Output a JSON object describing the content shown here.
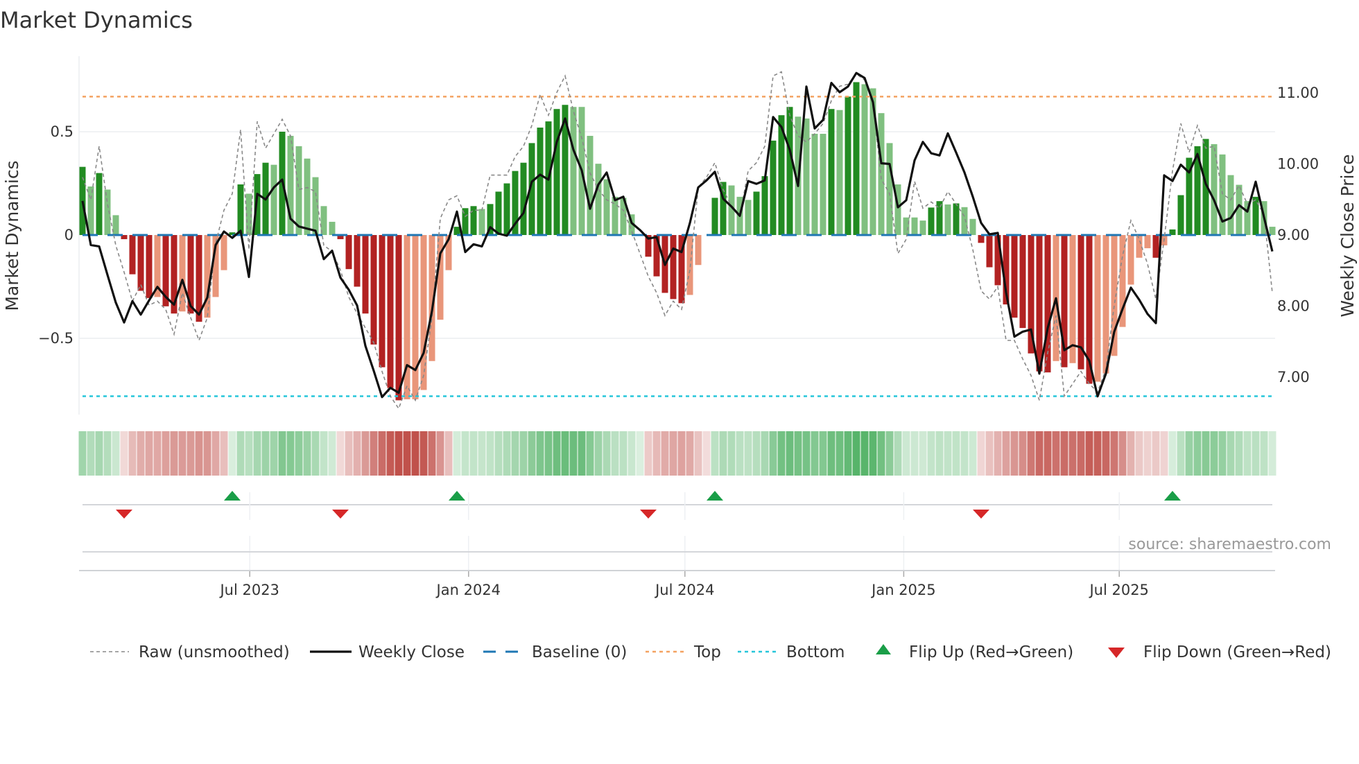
{
  "title": "Market Dynamics",
  "source": "source: sharemaestro.com",
  "colors": {
    "up_strong": "#228b22",
    "up_weak": "#80c080",
    "down_strong": "#b22222",
    "down_weak": "#e9967a",
    "raw": "#888888",
    "close": "#111111",
    "baseline": "#1f77b4",
    "top": "#f4a261",
    "bottom": "#26c6da",
    "flip_up": "#1a9e48",
    "flip_down": "#d62728",
    "strip_green": "#4caf60",
    "strip_red": "#c0504a"
  },
  "chart_data": {
    "type": "bar",
    "title": "Market Dynamics",
    "xlabel": "",
    "ylabel": "Market Dynamics",
    "y2label": "Weekly Close Price",
    "frequency": "weekly",
    "start_date": "2023-02-10",
    "ylim": [
      -0.87,
      0.87
    ],
    "y2lim": [
      6.5,
      11.5
    ],
    "yticks": [
      {
        "v": 0.5,
        "label": "0.5"
      },
      {
        "v": 0,
        "label": "0"
      },
      {
        "v": -0.5,
        "label": "−0.5"
      }
    ],
    "y2ticks": [
      {
        "v": 11,
        "label": "11.00"
      },
      {
        "v": 10,
        "label": "10.00"
      },
      {
        "v": 9,
        "label": "9.00"
      },
      {
        "v": 8,
        "label": "8.00"
      },
      {
        "v": 7,
        "label": "7.00"
      }
    ],
    "xticks": [
      {
        "week": 21.1,
        "label": "Jul 2023"
      },
      {
        "week": 47.4,
        "label": "Jan 2024"
      },
      {
        "week": 73.4,
        "label": "Jul 2024"
      },
      {
        "week": 99.7,
        "label": "Jan 2025"
      },
      {
        "week": 125.6,
        "label": "Jul 2025"
      }
    ],
    "top_level": 0.67,
    "bottom_level": -0.78,
    "baseline": 0,
    "grid": true,
    "legend_position": "bottom",
    "series": [
      {
        "name": "Market Dynamics",
        "kind": "bar",
        "values": [
          0.33,
          0.235,
          0.3,
          0.22,
          0.096,
          -0.02,
          -0.19,
          -0.27,
          -0.305,
          -0.3,
          -0.345,
          -0.38,
          -0.37,
          -0.38,
          -0.42,
          -0.4,
          -0.3,
          -0.17,
          0.013,
          0.245,
          0.2,
          0.295,
          0.35,
          0.34,
          0.5,
          0.48,
          0.43,
          0.37,
          0.28,
          0.14,
          0.064,
          -0.02,
          -0.165,
          -0.25,
          -0.38,
          -0.53,
          -0.64,
          -0.74,
          -0.8,
          -0.795,
          -0.795,
          -0.75,
          -0.61,
          -0.41,
          -0.17,
          0.04,
          0.13,
          0.14,
          0.126,
          0.15,
          0.21,
          0.25,
          0.31,
          0.35,
          0.445,
          0.52,
          0.55,
          0.61,
          0.63,
          0.62,
          0.62,
          0.48,
          0.345,
          0.27,
          0.185,
          0.18,
          0.1,
          0.0,
          -0.105,
          -0.2,
          -0.28,
          -0.31,
          -0.33,
          -0.29,
          -0.145,
          0.0,
          0.18,
          0.257,
          0.24,
          0.185,
          0.17,
          0.21,
          0.285,
          0.457,
          0.58,
          0.62,
          0.573,
          0.564,
          0.49,
          0.49,
          0.61,
          0.605,
          0.67,
          0.74,
          0.73,
          0.71,
          0.59,
          0.445,
          0.245,
          0.085,
          0.085,
          0.07,
          0.133,
          0.164,
          0.148,
          0.153,
          0.135,
          0.078,
          -0.038,
          -0.156,
          -0.243,
          -0.336,
          -0.4,
          -0.45,
          -0.573,
          -0.66,
          -0.665,
          -0.61,
          -0.64,
          -0.62,
          -0.65,
          -0.72,
          -0.71,
          -0.67,
          -0.585,
          -0.445,
          -0.24,
          -0.11,
          -0.064,
          -0.11,
          -0.05,
          0.027,
          0.193,
          0.374,
          0.43,
          0.465,
          0.44,
          0.39,
          0.29,
          0.243,
          0.164,
          0.185,
          0.164,
          0.04
        ]
      },
      {
        "name": "Raw (unsmoothed)",
        "kind": "line",
        "values": [
          0.28,
          0.17,
          0.43,
          0.15,
          -0.05,
          -0.18,
          -0.32,
          -0.24,
          -0.34,
          -0.32,
          -0.36,
          -0.48,
          -0.28,
          -0.4,
          -0.51,
          -0.4,
          -0.04,
          0.12,
          0.2,
          0.51,
          -0.07,
          0.55,
          0.42,
          0.49,
          0.56,
          0.48,
          0.22,
          0.23,
          0.21,
          -0.05,
          -0.08,
          -0.17,
          -0.3,
          -0.38,
          -0.45,
          -0.52,
          -0.66,
          -0.78,
          -0.84,
          -0.73,
          -0.8,
          -0.68,
          -0.4,
          0.08,
          0.17,
          0.19,
          0.09,
          0.12,
          0.12,
          0.29,
          0.29,
          0.29,
          0.38,
          0.43,
          0.53,
          0.68,
          0.58,
          0.69,
          0.77,
          0.6,
          0.47,
          0.3,
          0.22,
          0.17,
          0.15,
          0.12,
          0.02,
          -0.09,
          -0.2,
          -0.28,
          -0.39,
          -0.32,
          -0.36,
          -0.17,
          0.23,
          0.28,
          0.35,
          0.22,
          0.14,
          0.09,
          0.31,
          0.35,
          0.43,
          0.77,
          0.79,
          0.58,
          0.48,
          0.45,
          0.49,
          0.54,
          0.65,
          0.72,
          0.73,
          0.78,
          0.75,
          0.65,
          0.27,
          0.2,
          -0.09,
          -0.02,
          0.26,
          0.13,
          0.16,
          0.13,
          0.21,
          0.15,
          0.09,
          -0.07,
          -0.27,
          -0.31,
          -0.25,
          -0.51,
          -0.51,
          -0.6,
          -0.68,
          -0.8,
          -0.57,
          -0.39,
          -0.78,
          -0.72,
          -0.66,
          -0.72,
          -0.76,
          -0.65,
          -0.34,
          -0.1,
          0.07,
          -0.02,
          -0.14,
          -0.31,
          -0.02,
          0.31,
          0.54,
          0.4,
          0.53,
          0.42,
          0.43,
          0.2,
          0.17,
          0.24,
          0.15,
          0.17,
          0.1,
          -0.28
        ]
      },
      {
        "name": "Weekly Close",
        "kind": "line",
        "axis": "right",
        "values": [
          9.48,
          8.86,
          8.84,
          8.44,
          8.05,
          7.77,
          8.07,
          7.88,
          8.08,
          8.27,
          8.13,
          8.02,
          8.37,
          8.0,
          7.88,
          8.12,
          8.86,
          9.05,
          8.96,
          9.06,
          8.41,
          9.58,
          9.5,
          9.67,
          9.78,
          9.23,
          9.12,
          9.09,
          9.06,
          8.66,
          8.78,
          8.4,
          8.23,
          8.01,
          7.44,
          7.09,
          6.72,
          6.85,
          6.78,
          7.17,
          7.1,
          7.34,
          7.93,
          8.74,
          8.94,
          9.33,
          8.76,
          8.87,
          8.84,
          9.11,
          9.02,
          8.99,
          9.16,
          9.31,
          9.75,
          9.85,
          9.78,
          10.31,
          10.64,
          10.2,
          9.91,
          9.37,
          9.71,
          9.88,
          9.49,
          9.54,
          9.17,
          9.07,
          8.95,
          8.97,
          8.58,
          8.81,
          8.76,
          9.17,
          9.67,
          9.77,
          9.89,
          9.51,
          9.4,
          9.27,
          9.76,
          9.72,
          9.77,
          10.66,
          10.52,
          10.2,
          9.69,
          11.09,
          10.5,
          10.62,
          11.14,
          11.01,
          11.09,
          11.28,
          11.21,
          10.87,
          10.01,
          10.0,
          9.39,
          9.49,
          10.05,
          10.31,
          10.15,
          10.12,
          10.43,
          10.16,
          9.88,
          9.54,
          9.17,
          9.01,
          9.03,
          8.19,
          7.57,
          7.64,
          7.67,
          7.05,
          7.69,
          8.11,
          7.38,
          7.45,
          7.42,
          7.23,
          6.73,
          7.05,
          7.64,
          7.96,
          8.26,
          8.09,
          7.89,
          7.76,
          9.84,
          9.76,
          9.99,
          9.88,
          10.14,
          9.72,
          9.49,
          9.19,
          9.24,
          9.42,
          9.33,
          9.75,
          9.25,
          8.77
        ]
      }
    ],
    "legend": [
      {
        "key": "raw",
        "label": "Raw (unsmoothed)"
      },
      {
        "key": "close",
        "label": "Weekly Close"
      },
      {
        "key": "baseline",
        "label": "Baseline (0)"
      },
      {
        "key": "top",
        "label": "Top"
      },
      {
        "key": "bottom",
        "label": "Bottom"
      },
      {
        "key": "flip_up",
        "label": "Flip Up (Red→Green)"
      },
      {
        "key": "flip_down",
        "label": "Flip Down (Green→Red)"
      }
    ]
  }
}
